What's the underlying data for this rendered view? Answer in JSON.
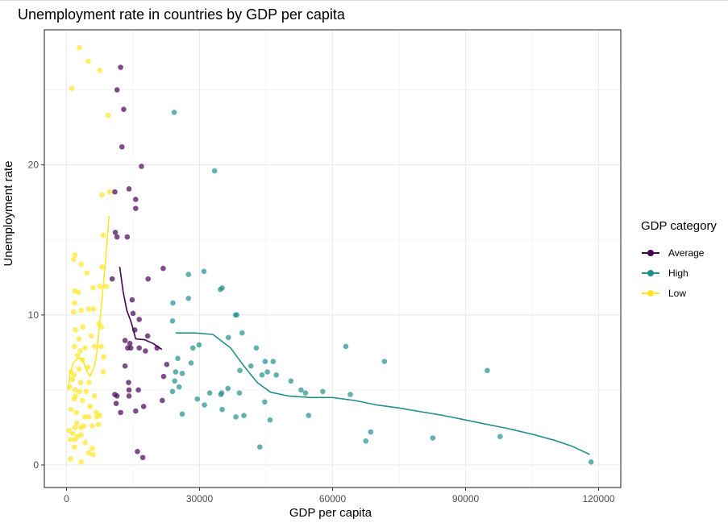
{
  "chart_data": {
    "type": "scatter",
    "title": "Unemployment rate in countries by GDP per capita",
    "xlabel": "GDP per capita",
    "ylabel": "Unemployment rate",
    "xlim": [
      -5000,
      125000
    ],
    "ylim": [
      -1.5,
      29
    ],
    "xticks": [
      0,
      30000,
      60000,
      90000,
      120000
    ],
    "yticks": [
      0,
      10,
      20
    ],
    "grid": true,
    "legend": {
      "title": "GDP category",
      "placement": "right",
      "entries": [
        "Average",
        "High",
        "Low"
      ]
    },
    "series": [
      {
        "name": "Average",
        "color": "#440154",
        "points": [
          [
            12200,
            26.5
          ],
          [
            11400,
            25.0
          ],
          [
            12900,
            23.7
          ],
          [
            12500,
            21.2
          ],
          [
            16900,
            19.9
          ],
          [
            10900,
            18.2
          ],
          [
            14100,
            18.4
          ],
          [
            15600,
            17.7
          ],
          [
            15600,
            17.1
          ],
          [
            11000,
            15.5
          ],
          [
            11400,
            15.2
          ],
          [
            13700,
            15.2
          ],
          [
            21800,
            13.1
          ],
          [
            18400,
            12.4
          ],
          [
            10300,
            12.4
          ],
          [
            14800,
            11.0
          ],
          [
            15000,
            10.1
          ],
          [
            16400,
            9.7
          ],
          [
            15400,
            9.0
          ],
          [
            13200,
            8.3
          ],
          [
            14300,
            8.1
          ],
          [
            13800,
            7.8
          ],
          [
            14500,
            7.8
          ],
          [
            16400,
            7.8
          ],
          [
            17800,
            7.6
          ],
          [
            18300,
            8.6
          ],
          [
            20400,
            7.8
          ],
          [
            22600,
            6.7
          ],
          [
            13200,
            6.6
          ],
          [
            14000,
            5.5
          ],
          [
            14100,
            5.0
          ],
          [
            14100,
            4.6
          ],
          [
            16200,
            5.0
          ],
          [
            10900,
            4.7
          ],
          [
            11400,
            4.6
          ],
          [
            11200,
            4.1
          ],
          [
            15600,
            3.6
          ],
          [
            12200,
            3.5
          ],
          [
            17400,
            3.9
          ],
          [
            21600,
            4.3
          ],
          [
            21900,
            5.9
          ],
          [
            16000,
            0.9
          ],
          [
            17200,
            0.5
          ]
        ],
        "smooth": [
          [
            12000,
            13.2
          ],
          [
            12800,
            11.5
          ],
          [
            13600,
            10.3
          ],
          [
            14600,
            9.5
          ],
          [
            15600,
            8.4
          ],
          [
            17600,
            8.35
          ],
          [
            19500,
            8.1
          ],
          [
            21500,
            7.7
          ]
        ]
      },
      {
        "name": "High",
        "color": "#21908C",
        "points": [
          [
            24300,
            23.5
          ],
          [
            33400,
            19.6
          ],
          [
            31000,
            12.9
          ],
          [
            27500,
            12.7
          ],
          [
            35100,
            11.8
          ],
          [
            34700,
            11.7
          ],
          [
            27500,
            11.1
          ],
          [
            24000,
            10.8
          ],
          [
            38100,
            10.0
          ],
          [
            38400,
            10.0
          ],
          [
            23900,
            9.6
          ],
          [
            39600,
            8.8
          ],
          [
            36500,
            8.5
          ],
          [
            42800,
            7.8
          ],
          [
            63000,
            7.9
          ],
          [
            28500,
            7.8
          ],
          [
            29900,
            8.0
          ],
          [
            25100,
            7.1
          ],
          [
            28100,
            6.8
          ],
          [
            44800,
            6.9
          ],
          [
            46600,
            6.9
          ],
          [
            41600,
            6.6
          ],
          [
            71700,
            6.9
          ],
          [
            44100,
            6.0
          ],
          [
            45300,
            6.2
          ],
          [
            47300,
            6.0
          ],
          [
            26100,
            6.1
          ],
          [
            24600,
            6.2
          ],
          [
            39100,
            6.3
          ],
          [
            94900,
            6.3
          ],
          [
            50600,
            5.6
          ],
          [
            24400,
            5.6
          ],
          [
            25400,
            5.2
          ],
          [
            23900,
            4.9
          ],
          [
            36400,
            5.1
          ],
          [
            52900,
            5.0
          ],
          [
            53900,
            4.8
          ],
          [
            57800,
            4.9
          ],
          [
            35000,
            4.8
          ],
          [
            39000,
            4.8
          ],
          [
            64000,
            4.7
          ],
          [
            29500,
            4.4
          ],
          [
            32300,
            4.8
          ],
          [
            34800,
            4.7
          ],
          [
            44700,
            4.2
          ],
          [
            26100,
            3.4
          ],
          [
            31100,
            4.0
          ],
          [
            35100,
            3.7
          ],
          [
            54600,
            3.3
          ],
          [
            38200,
            3.2
          ],
          [
            40000,
            3.3
          ],
          [
            45900,
            3.0
          ],
          [
            68600,
            2.2
          ],
          [
            67500,
            1.6
          ],
          [
            82600,
            1.8
          ],
          [
            97800,
            1.9
          ],
          [
            43600,
            1.2
          ],
          [
            118300,
            0.2
          ]
        ],
        "smooth": [
          [
            24600,
            8.8
          ],
          [
            29000,
            8.8
          ],
          [
            33000,
            8.7
          ],
          [
            37000,
            7.8
          ],
          [
            40000,
            6.6
          ],
          [
            43000,
            5.5
          ],
          [
            46000,
            4.85
          ],
          [
            50000,
            4.6
          ],
          [
            55000,
            4.5
          ],
          [
            60000,
            4.5
          ],
          [
            65000,
            4.3
          ],
          [
            70000,
            4.0
          ],
          [
            75000,
            3.8
          ],
          [
            80000,
            3.55
          ],
          [
            85000,
            3.3
          ],
          [
            90000,
            3.0
          ],
          [
            95000,
            2.7
          ],
          [
            100000,
            2.4
          ],
          [
            105000,
            2.05
          ],
          [
            110000,
            1.65
          ],
          [
            114000,
            1.25
          ],
          [
            118000,
            0.7
          ]
        ]
      },
      {
        "name": "Low",
        "color": "#FDE725",
        "points": [
          [
            2900,
            27.8
          ],
          [
            4900,
            26.9
          ],
          [
            7500,
            26.3
          ],
          [
            1200,
            25.1
          ],
          [
            9400,
            23.3
          ],
          [
            8000,
            18.0
          ],
          [
            9700,
            18.2
          ],
          [
            8300,
            15.3
          ],
          [
            1900,
            14.0
          ],
          [
            1600,
            13.7
          ],
          [
            8000,
            13.2
          ],
          [
            3300,
            13.4
          ],
          [
            4600,
            12.8
          ],
          [
            1900,
            11.6
          ],
          [
            2700,
            11.5
          ],
          [
            6000,
            11.8
          ],
          [
            7500,
            11.9
          ],
          [
            9000,
            11.9
          ],
          [
            1800,
            10.8
          ],
          [
            5000,
            10.4
          ],
          [
            6100,
            10.4
          ],
          [
            3300,
            10.3
          ],
          [
            1600,
            10.2
          ],
          [
            7300,
            9.4
          ],
          [
            7900,
            9.2
          ],
          [
            2000,
            9.0
          ],
          [
            3700,
            9.2
          ],
          [
            5600,
            8.6
          ],
          [
            2800,
            8.4
          ],
          [
            1800,
            7.9
          ],
          [
            3100,
            7.6
          ],
          [
            4200,
            7.8
          ],
          [
            6300,
            7.9
          ],
          [
            7800,
            7.9
          ],
          [
            8400,
            7.2
          ],
          [
            2500,
            7.3
          ],
          [
            3600,
            7.0
          ],
          [
            1000,
            6.2
          ],
          [
            1700,
            6.0
          ],
          [
            2800,
            6.4
          ],
          [
            4800,
            6.5
          ],
          [
            8300,
            6.2
          ],
          [
            1300,
            5.7
          ],
          [
            3200,
            5.5
          ],
          [
            5100,
            5.5
          ],
          [
            700,
            5.2
          ],
          [
            1900,
            5.0
          ],
          [
            2900,
            4.9
          ],
          [
            4400,
            4.9
          ],
          [
            6300,
            4.6
          ],
          [
            2000,
            4.6
          ],
          [
            1700,
            4.4
          ],
          [
            3600,
            4.3
          ],
          [
            1000,
            3.7
          ],
          [
            5300,
            3.9
          ],
          [
            2200,
            3.5
          ],
          [
            6700,
            3.5
          ],
          [
            7500,
            3.3
          ],
          [
            4100,
            3.2
          ],
          [
            5000,
            3.2
          ],
          [
            6800,
            3.2
          ],
          [
            2300,
            2.8
          ],
          [
            3900,
            2.6
          ],
          [
            5800,
            2.6
          ],
          [
            7200,
            2.7
          ],
          [
            600,
            2.3
          ],
          [
            1900,
            2.5
          ],
          [
            3200,
            2.5
          ],
          [
            1400,
            2.1
          ],
          [
            3300,
            2.0
          ],
          [
            2500,
            1.9
          ],
          [
            900,
            1.7
          ],
          [
            1900,
            1.7
          ],
          [
            4200,
            1.5
          ],
          [
            5800,
            1.1
          ],
          [
            1800,
            1.2
          ],
          [
            5000,
            0.8
          ],
          [
            6000,
            0.7
          ],
          [
            900,
            0.4
          ],
          [
            3300,
            0.2
          ]
        ],
        "smooth": [
          [
            400,
            4.95
          ],
          [
            800,
            6.1
          ],
          [
            1500,
            6.8
          ],
          [
            2500,
            7.1
          ],
          [
            3500,
            7.1
          ],
          [
            4500,
            6.3
          ],
          [
            5300,
            5.9
          ],
          [
            6300,
            6.6
          ],
          [
            6800,
            7.4
          ],
          [
            7200,
            8.6
          ],
          [
            8000,
            11.0
          ],
          [
            8800,
            13.6
          ],
          [
            9600,
            16.6
          ]
        ]
      }
    ]
  }
}
